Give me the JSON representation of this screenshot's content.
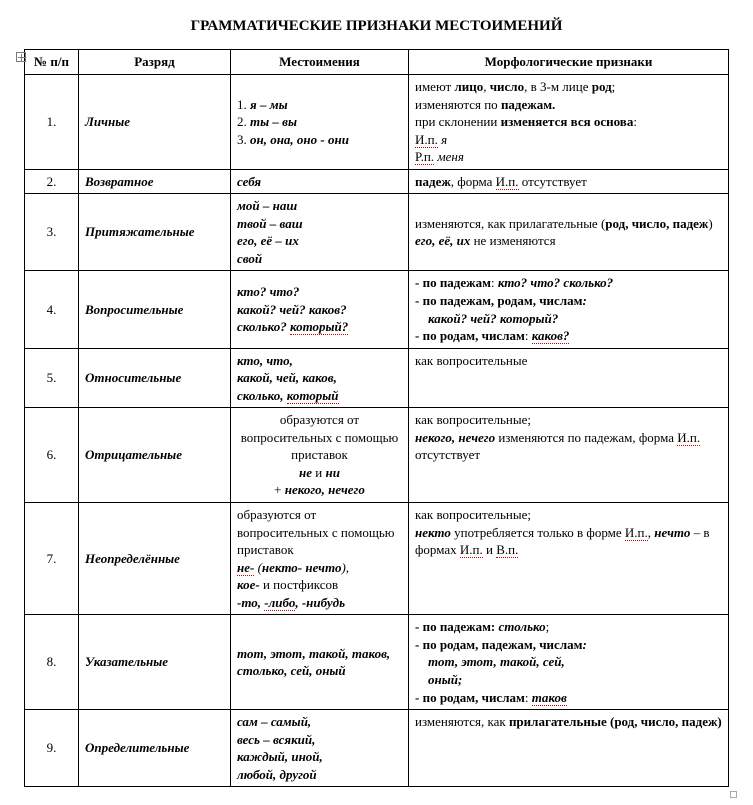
{
  "title": "ГРАММАТИЧЕСКИЕ ПРИЗНАКИ МЕСТОИМЕНИЙ",
  "header": {
    "c1": "№ п/п",
    "c2": "Разряд",
    "c3": "Местоимения",
    "c4": "Морфологические признаки"
  },
  "r1": {
    "num": "1.",
    "cat": "Личные",
    "p_n1": "1.",
    "p_v1": "я – мы",
    "p_n2": "2.",
    "p_v2": "ты – вы",
    "p_n3": "3.",
    "p_v3": "он, она, оно - они",
    "m_a": "имеют ",
    "m_b": "лицо",
    "m_c": ", ",
    "m_d": "число",
    "m_e": ", в 3-м лице ",
    "m_f": "род",
    "m_g": ";",
    "m2_a": "изменяются по ",
    "m2_b": "падежам.",
    "m3_a": "при склонении ",
    "m3_b": "изменяется вся основа",
    "m3_c": ":",
    "m4_a": "И.п.",
    "m4_b": " я",
    "m5_a": "Р.п.",
    "m5_b": " меня"
  },
  "r2": {
    "num": "2.",
    "cat": "Возвратное",
    "p": "себя",
    "m_a": "падеж",
    "m_b": ", форма ",
    "m_c": "И.п.",
    "m_d": " отсутствует"
  },
  "r3": {
    "num": "3.",
    "cat": "Притяжательные",
    "p1": "мой – наш",
    "p2": "твой – ваш",
    "p3": "его, её – их",
    "p4": "свой",
    "m1_a": "изменяются, как прилагательные (",
    "m1_b": "род, число, падеж",
    "m1_c": ")",
    "m2_a": "его, её, их",
    "m2_b": " не изменяются"
  },
  "r4": {
    "num": "4.",
    "cat": "Вопросительные",
    "p1": "кто? что?",
    "p2": "какой? чей? каков?",
    "p3_a": "сколько? ",
    "p3_b": "который?",
    "m1_a": "- по падежам",
    "m1_b": ": ",
    "m1_c": "кто? что? сколько?",
    "m2_a": "- по падежам, родам,  числам",
    "m2_b": ":",
    "m3_sp": "    ",
    "m3_a": "какой? чей? который?",
    "m4_a": "- по родам, числам",
    "m4_b": ":  ",
    "m4_c": "каков?"
  },
  "r5": {
    "num": "5.",
    "cat": "Относительные",
    "p1": "кто, что,",
    "p2": "какой, чей, каков,",
    "p3_a": "сколько, ",
    "p3_b": "который",
    "m": "как вопросительные"
  },
  "r6": {
    "num": "6.",
    "cat": "Отрицательные",
    "p1": "образуются от вопросительных с помощью приставок",
    "p2_a": "не",
    "p2_b": " и ",
    "p2_c": "ни",
    "p3_a": "+ ",
    "p3_b": "некого, нечего",
    "m1": "как вопросительные;",
    "m2_a": "некого, нечего",
    "m2_b": " изменяются по падежам, форма ",
    "m2_c": "И.п.",
    "m2_d": " отсутствует"
  },
  "r7": {
    "num": "7.",
    "cat": "Неопределённые",
    "p1": "образуются от вопросительных с помощью приставок",
    "p2_a": "не-",
    "p2_b": " (",
    "p2_c": "некто-",
    "p2_d": " ",
    "p2_e": "нечто",
    "p2_f": "),",
    "p3_a": "кое-",
    "p3_b": " и постфиксов",
    "p4_a": "-то, ",
    "p4_b": "-либо",
    "p4_c": ", -нибудь",
    "m1": "как вопросительные;",
    "m2_a": "некто",
    "m2_b": " употребляется только в форме ",
    "m2_c": "И.п.",
    "m2_d": ", ",
    "m2_e": "нечто",
    "m2_f": " – в формах ",
    "m2_g": "И.п.",
    "m2_h": " и ",
    "m2_i": "В.п."
  },
  "r8": {
    "num": "8.",
    "cat": "Указательные",
    "p1": "тот, этот, такой, таков, столько, сей, оный",
    "m1_a": "- по падежам: ",
    "m1_b": "столько",
    "m1_c": ";",
    "m2_a": "- по родам, падежам, числам",
    "m2_b": ":",
    "m3_sp": "    ",
    "m3_a": "тот, этот, такой, сей,",
    "m4_sp": "    ",
    "m4_a": "оный;",
    "m5_a": "- по родам, числам",
    "m5_b": ": ",
    "m5_c": "таков"
  },
  "r9": {
    "num": "9.",
    "cat": "Определительные",
    "p1": "сам – самый,",
    "p2": "весь – всякий,",
    "p3": "каждый, иной,",
    "p4": "любой, другой",
    "m_a": "изменяются, как ",
    "m_b": "прилагательные (род, число, падеж)"
  }
}
